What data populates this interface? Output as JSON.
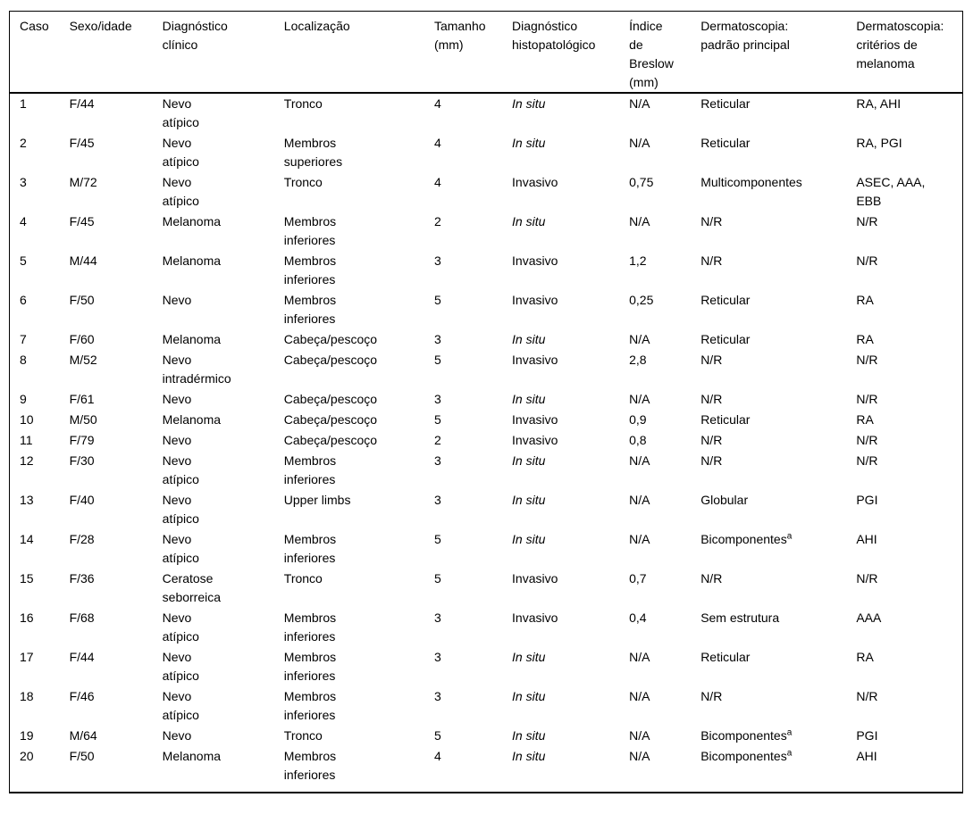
{
  "table": {
    "columns": [
      {
        "id": "caso",
        "label": "Caso"
      },
      {
        "id": "sexo_idade",
        "label": "Sexo/idade"
      },
      {
        "id": "diagnostico_clinico",
        "label": "Diagnóstico clínico"
      },
      {
        "id": "localizacao",
        "label": "Localização"
      },
      {
        "id": "tamanho_mm",
        "label": "Tamanho (mm)"
      },
      {
        "id": "diagnostico_histopatologico",
        "label": "Diagnóstico histopatológico"
      },
      {
        "id": "indice_breslow_mm",
        "label": "Índice de Breslow (mm)"
      },
      {
        "id": "dermatoscopia_padrao_principal",
        "label": "Dermatoscopia: padrão principal"
      },
      {
        "id": "dermatoscopia_criterios_melanoma",
        "label": "Dermatoscopia: critérios de melanoma"
      }
    ],
    "rows": [
      {
        "caso": "1",
        "sexo_idade": "F/44",
        "diagnostico_clinico": "Nevo atípico",
        "localizacao": "Tronco",
        "tamanho_mm": "4",
        "diagnostico_histopatologico": "In situ",
        "indice_breslow_mm": "N/A",
        "dermatoscopia_padrao_principal": "Reticular",
        "dermatoscopia_criterios_melanoma": "RA, AHI"
      },
      {
        "caso": "2",
        "sexo_idade": "F/45",
        "diagnostico_clinico": "Nevo atípico",
        "localizacao": "Membros superiores",
        "tamanho_mm": "4",
        "diagnostico_histopatologico": "In situ",
        "indice_breslow_mm": "N/A",
        "dermatoscopia_padrao_principal": "Reticular",
        "dermatoscopia_criterios_melanoma": "RA, PGI"
      },
      {
        "caso": "3",
        "sexo_idade": "M/72",
        "diagnostico_clinico": "Nevo atípico",
        "localizacao": "Tronco",
        "tamanho_mm": "4",
        "diagnostico_histopatologico": "Invasivo",
        "indice_breslow_mm": "0,75",
        "dermatoscopia_padrao_principal": "Multicomponentes",
        "dermatoscopia_criterios_melanoma": "ASEC, AAA, EBB"
      },
      {
        "caso": "4",
        "sexo_idade": "F/45",
        "diagnostico_clinico": "Melanoma",
        "localizacao": "Membros inferiores",
        "tamanho_mm": "2",
        "diagnostico_histopatologico": "In situ",
        "indice_breslow_mm": "N/A",
        "dermatoscopia_padrao_principal": "N/R",
        "dermatoscopia_criterios_melanoma": "N/R"
      },
      {
        "caso": "5",
        "sexo_idade": "M/44",
        "diagnostico_clinico": "Melanoma",
        "localizacao": "Membros inferiores",
        "tamanho_mm": "3",
        "diagnostico_histopatologico": "Invasivo",
        "indice_breslow_mm": "1,2",
        "dermatoscopia_padrao_principal": "N/R",
        "dermatoscopia_criterios_melanoma": "N/R"
      },
      {
        "caso": "6",
        "sexo_idade": "F/50",
        "diagnostico_clinico": "Nevo",
        "localizacao": "Membros inferiores",
        "tamanho_mm": "5",
        "diagnostico_histopatologico": "Invasivo",
        "indice_breslow_mm": "0,25",
        "dermatoscopia_padrao_principal": "Reticular",
        "dermatoscopia_criterios_melanoma": "RA"
      },
      {
        "caso": "7",
        "sexo_idade": "F/60",
        "diagnostico_clinico": "Melanoma",
        "localizacao": "Cabeça/pescoço",
        "tamanho_mm": "3",
        "diagnostico_histopatologico": "In situ",
        "indice_breslow_mm": "N/A",
        "dermatoscopia_padrao_principal": "Reticular",
        "dermatoscopia_criterios_melanoma": "RA"
      },
      {
        "caso": "8",
        "sexo_idade": "M/52",
        "diagnostico_clinico": "Nevo intradérmico",
        "localizacao": "Cabeça/pescoço",
        "tamanho_mm": "5",
        "diagnostico_histopatologico": "Invasivo",
        "indice_breslow_mm": "2,8",
        "dermatoscopia_padrao_principal": "N/R",
        "dermatoscopia_criterios_melanoma": "N/R"
      },
      {
        "caso": "9",
        "sexo_idade": "F/61",
        "diagnostico_clinico": "Nevo",
        "localizacao": "Cabeça/pescoço",
        "tamanho_mm": "3",
        "diagnostico_histopatologico": "In situ",
        "indice_breslow_mm": "N/A",
        "dermatoscopia_padrao_principal": "N/R",
        "dermatoscopia_criterios_melanoma": "N/R"
      },
      {
        "caso": "10",
        "sexo_idade": "M/50",
        "diagnostico_clinico": "Melanoma",
        "localizacao": "Cabeça/pescoço",
        "tamanho_mm": "5",
        "diagnostico_histopatologico": "Invasivo",
        "indice_breslow_mm": "0,9",
        "dermatoscopia_padrao_principal": "Reticular",
        "dermatoscopia_criterios_melanoma": "RA"
      },
      {
        "caso": "11",
        "sexo_idade": "F/79",
        "diagnostico_clinico": "Nevo",
        "localizacao": "Cabeça/pescoço",
        "tamanho_mm": "2",
        "diagnostico_histopatologico": "Invasivo",
        "indice_breslow_mm": "0,8",
        "dermatoscopia_padrao_principal": "N/R",
        "dermatoscopia_criterios_melanoma": "N/R"
      },
      {
        "caso": "12",
        "sexo_idade": "F/30",
        "diagnostico_clinico": "Nevo atípico",
        "localizacao": "Membros inferiores",
        "tamanho_mm": "3",
        "diagnostico_histopatologico": "In situ",
        "indice_breslow_mm": "N/A",
        "dermatoscopia_padrao_principal": "N/R",
        "dermatoscopia_criterios_melanoma": "N/R"
      },
      {
        "caso": "13",
        "sexo_idade": "F/40",
        "diagnostico_clinico": "Nevo atípico",
        "localizacao": "Upper limbs",
        "tamanho_mm": "3",
        "diagnostico_histopatologico": "In situ",
        "indice_breslow_mm": "N/A",
        "dermatoscopia_padrao_principal": "Globular",
        "dermatoscopia_criterios_melanoma": "PGI"
      },
      {
        "caso": "14",
        "sexo_idade": "F/28",
        "diagnostico_clinico": "Nevo atípico",
        "localizacao": "Membros inferiores",
        "tamanho_mm": "5",
        "diagnostico_histopatologico": "In situ",
        "indice_breslow_mm": "N/A",
        "dermatoscopia_padrao_principal": "Bicomponentes",
        "dermatoscopia_padrao_sup": "a",
        "dermatoscopia_criterios_melanoma": "AHI"
      },
      {
        "caso": "15",
        "sexo_idade": "F/36",
        "diagnostico_clinico": "Ceratose seborreica",
        "localizacao": "Tronco",
        "tamanho_mm": "5",
        "diagnostico_histopatologico": "Invasivo",
        "indice_breslow_mm": "0,7",
        "dermatoscopia_padrao_principal": "N/R",
        "dermatoscopia_criterios_melanoma": "N/R"
      },
      {
        "caso": "16",
        "sexo_idade": "F/68",
        "diagnostico_clinico": "Nevo atípico",
        "localizacao": "Membros inferiores",
        "tamanho_mm": "3",
        "diagnostico_histopatologico": "Invasivo",
        "indice_breslow_mm": "0,4",
        "dermatoscopia_padrao_principal": "Sem estrutura",
        "dermatoscopia_criterios_melanoma": "AAA"
      },
      {
        "caso": "17",
        "sexo_idade": "F/44",
        "diagnostico_clinico": "Nevo atípico",
        "localizacao": "Membros inferiores",
        "tamanho_mm": "3",
        "diagnostico_histopatologico": "In situ",
        "indice_breslow_mm": "N/A",
        "dermatoscopia_padrao_principal": "Reticular",
        "dermatoscopia_criterios_melanoma": "RA"
      },
      {
        "caso": "18",
        "sexo_idade": "F/46",
        "diagnostico_clinico": "Nevo atípico",
        "localizacao": "Membros inferiores",
        "tamanho_mm": "3",
        "diagnostico_histopatologico": "In situ",
        "indice_breslow_mm": "N/A",
        "dermatoscopia_padrao_principal": "N/R",
        "dermatoscopia_criterios_melanoma": "N/R"
      },
      {
        "caso": "19",
        "sexo_idade": "M/64",
        "diagnostico_clinico": "Nevo",
        "localizacao": "Tronco",
        "tamanho_mm": "5",
        "diagnostico_histopatologico": "In situ",
        "indice_breslow_mm": "N/A",
        "dermatoscopia_padrao_principal": "Bicomponentes",
        "dermatoscopia_padrao_sup": "a",
        "dermatoscopia_criterios_melanoma": "PGI"
      },
      {
        "caso": "20",
        "sexo_idade": "F/50",
        "diagnostico_clinico": "Melanoma",
        "localizacao": "Membros inferiores",
        "tamanho_mm": "4",
        "diagnostico_histopatologico": "In situ",
        "indice_breslow_mm": "N/A",
        "dermatoscopia_padrao_principal": "Bicomponentes",
        "dermatoscopia_padrao_sup": "a",
        "dermatoscopia_criterios_melanoma": "AHI"
      }
    ],
    "italic_value": "In situ",
    "text_color": "#000000",
    "background_color": "#ffffff"
  }
}
